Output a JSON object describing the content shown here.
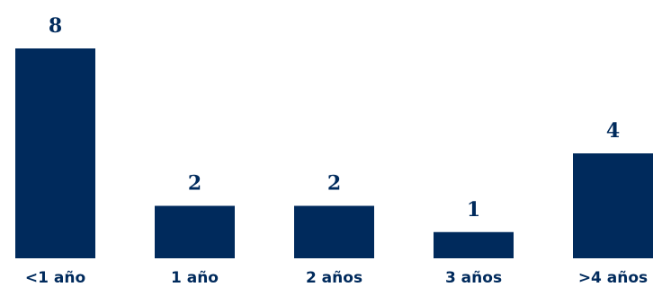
{
  "chart_data": {
    "type": "bar",
    "categories": [
      "<1 año",
      "1 año",
      "2 años",
      "3 años",
      ">4 años"
    ],
    "values": [
      8,
      2,
      2,
      1,
      4
    ],
    "title": "",
    "xlabel": "",
    "ylabel": "",
    "ylim": [
      0,
      8
    ],
    "grid": false,
    "legend": "none",
    "bar_color": "#002a5c",
    "label_color": "#002a5c",
    "background_color": "#ffffff"
  }
}
